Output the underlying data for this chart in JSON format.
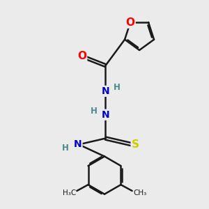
{
  "bg_color": "#ebebeb",
  "bond_color": "#1a1a1a",
  "bond_width": 1.8,
  "atom_colors": {
    "O": "#ff0000",
    "N": "#0000cc",
    "S": "#cccc00",
    "C": "#1a1a1a",
    "H": "#4a8a8a"
  },
  "font_size_atom": 10,
  "font_size_H": 8.5
}
